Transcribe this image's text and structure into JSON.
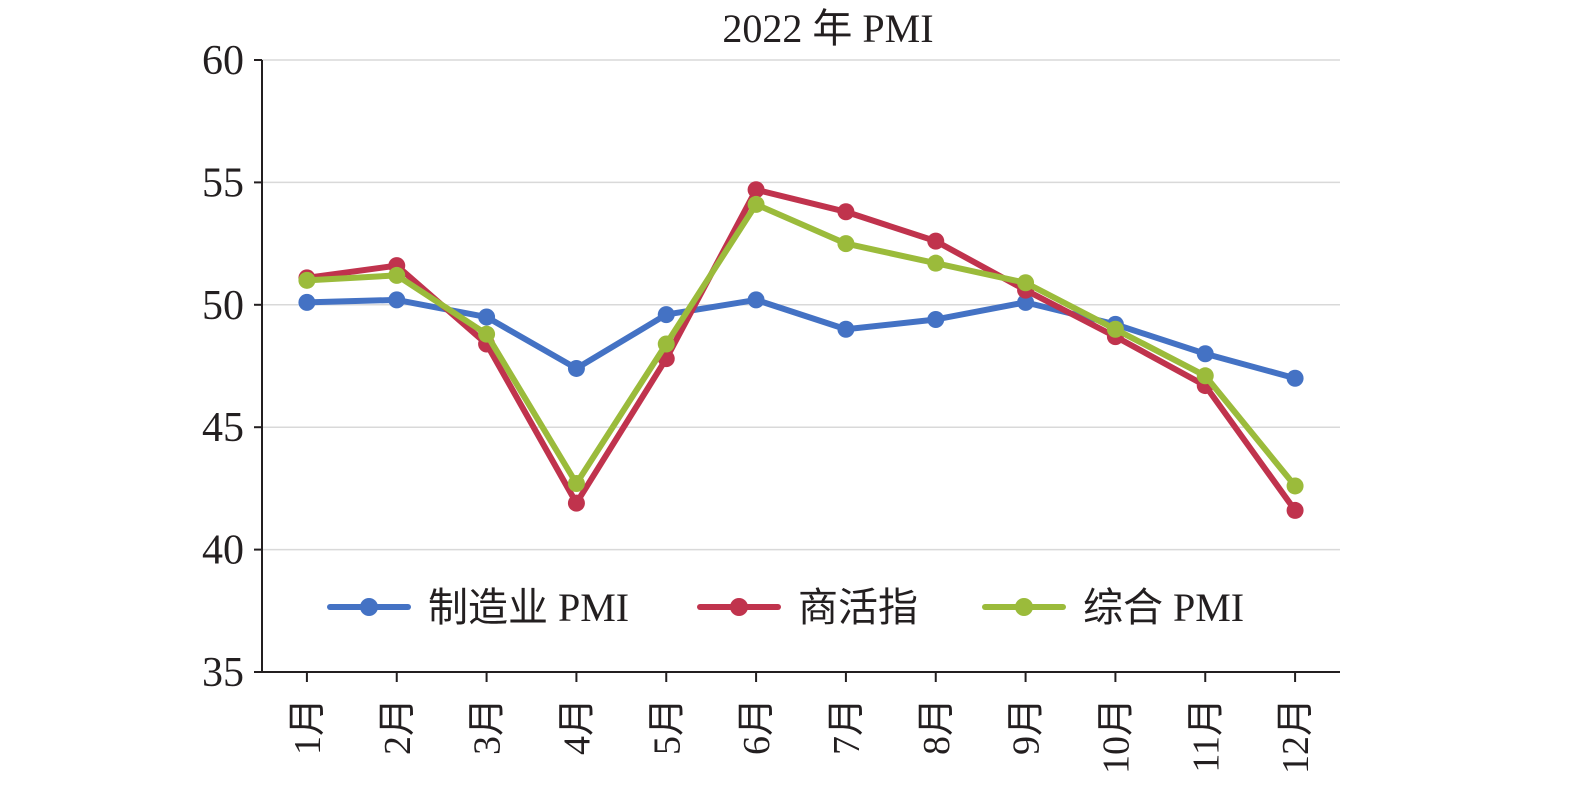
{
  "chart_data": {
    "type": "line",
    "title": "2022 年 PMI",
    "xlabel": "",
    "ylabel": "",
    "categories": [
      "1月",
      "2月",
      "3月",
      "4月",
      "5月",
      "6月",
      "7月",
      "8月",
      "9月",
      "10月",
      "11月",
      "12月"
    ],
    "ylim": [
      35,
      60
    ],
    "yticks": [
      35,
      40,
      45,
      50,
      55,
      60
    ],
    "grid": true,
    "legend_position": "bottom-inside",
    "series": [
      {
        "name": "制造业 PMI",
        "color": "#4472c4",
        "values": [
          50.1,
          50.2,
          49.5,
          47.4,
          49.6,
          50.2,
          49.0,
          49.4,
          50.1,
          49.2,
          48.0,
          47.0
        ]
      },
      {
        "name": "商活指",
        "color": "#c0334d",
        "values": [
          51.1,
          51.6,
          48.4,
          41.9,
          47.8,
          54.7,
          53.8,
          52.6,
          50.6,
          48.7,
          46.7,
          41.6
        ]
      },
      {
        "name": "综合 PMI",
        "color": "#9bbb3b",
        "values": [
          51.0,
          51.2,
          48.8,
          42.7,
          48.4,
          54.1,
          52.5,
          51.7,
          50.9,
          49.0,
          47.1,
          42.6
        ]
      }
    ]
  }
}
